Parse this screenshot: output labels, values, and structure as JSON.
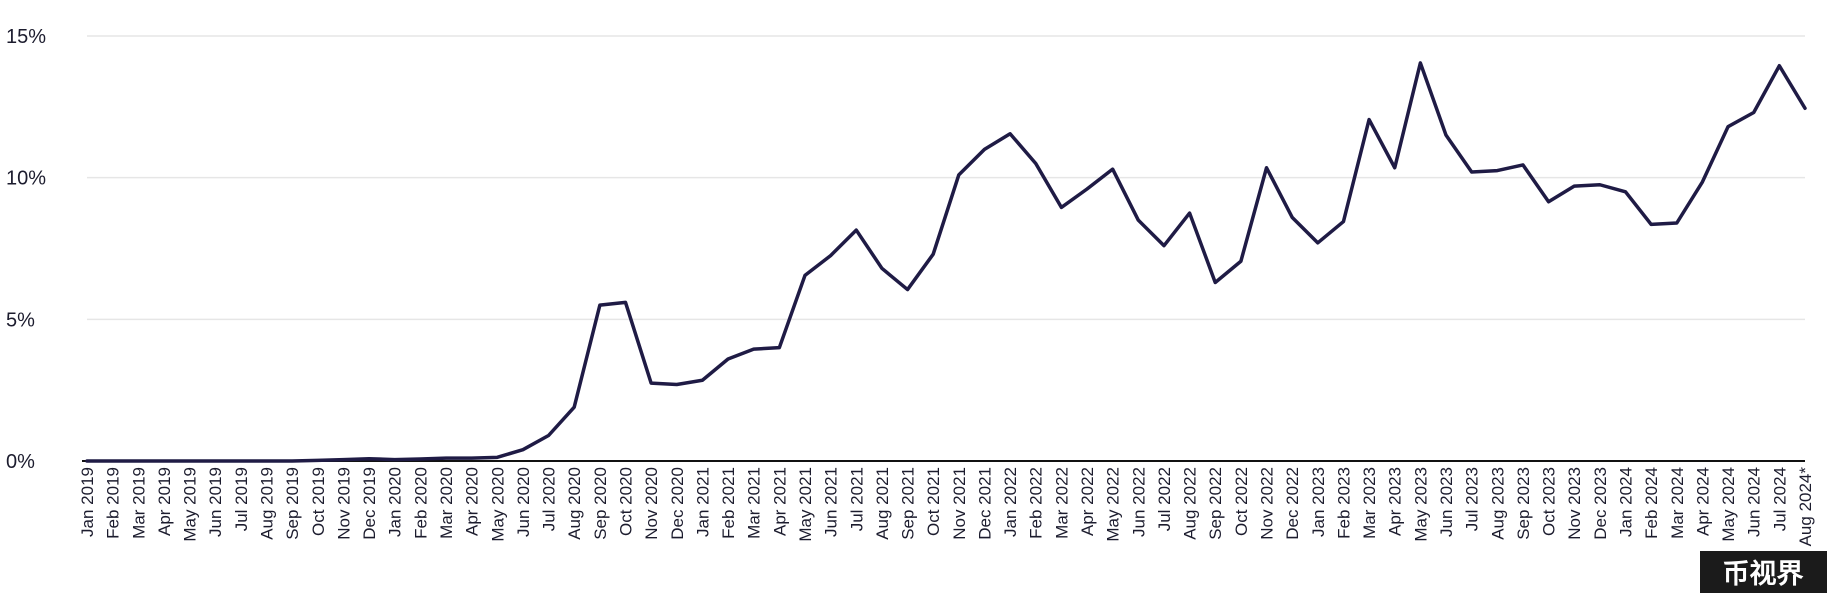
{
  "chart_data": {
    "type": "line",
    "title": "",
    "xlabel": "",
    "ylabel": "",
    "ylim": [
      0,
      15
    ],
    "y_ticks": [
      0,
      5,
      10,
      15
    ],
    "y_tick_labels": [
      "0%",
      "5%",
      "10%",
      "15%"
    ],
    "grid": "horizontal",
    "legend": "none",
    "line_color": "#1f1b45",
    "categories": [
      "Jan 2019",
      "Feb 2019",
      "Mar 2019",
      "Apr 2019",
      "May 2019",
      "Jun 2019",
      "Jul 2019",
      "Aug 2019",
      "Sep 2019",
      "Oct 2019",
      "Nov 2019",
      "Dec 2019",
      "Jan 2020",
      "Feb 2020",
      "Mar 2020",
      "Apr 2020",
      "May 2020",
      "Jun 2020",
      "Jul 2020",
      "Aug 2020",
      "Sep 2020",
      "Oct 2020",
      "Nov 2020",
      "Dec 2020",
      "Jan 2021",
      "Feb 2021",
      "Mar 2021",
      "Apr 2021",
      "May 2021",
      "Jun 2021",
      "Jul 2021",
      "Aug 2021",
      "Sep 2021",
      "Oct 2021",
      "Nov 2021",
      "Dec 2021",
      "Jan 2022",
      "Feb 2022",
      "Mar 2022",
      "Apr 2022",
      "May 2022",
      "Jun 2022",
      "Jul 2022",
      "Aug 2022",
      "Sep 2022",
      "Oct 2022",
      "Nov 2022",
      "Dec 2022",
      "Jan 2023",
      "Feb 2023",
      "Mar 2023",
      "Apr 2023",
      "May 2023",
      "Jun 2023",
      "Jul 2023",
      "Aug 2023",
      "Sep 2023",
      "Oct 2023",
      "Nov 2023",
      "Dec 2023",
      "Jan 2024",
      "Feb 2024",
      "Mar 2024",
      "Apr 2024",
      "May 2024",
      "Jun 2024",
      "Jul 2024",
      "Aug 2024*"
    ],
    "series": [
      {
        "values": [
          0.0,
          0.0,
          0.0,
          0.0,
          0.0,
          0.0,
          0.0,
          0.0,
          0.0,
          0.02,
          0.05,
          0.08,
          0.05,
          0.07,
          0.1,
          0.1,
          0.13,
          0.4,
          0.9,
          1.9,
          5.5,
          5.6,
          2.75,
          2.7,
          2.85,
          3.6,
          3.95,
          4.0,
          6.55,
          7.25,
          8.15,
          6.8,
          6.05,
          7.3,
          10.1,
          11.0,
          11.55,
          10.5,
          8.95,
          9.6,
          10.3,
          8.5,
          7.6,
          8.75,
          6.3,
          7.05,
          10.35,
          8.6,
          7.7,
          8.45,
          12.05,
          10.35,
          14.05,
          11.5,
          10.2,
          10.25,
          10.45,
          9.15,
          9.7,
          9.75,
          9.5,
          8.35,
          8.4,
          9.85,
          11.8,
          12.3,
          13.95,
          12.45
        ]
      }
    ]
  },
  "watermark": {
    "text": "币视界"
  }
}
